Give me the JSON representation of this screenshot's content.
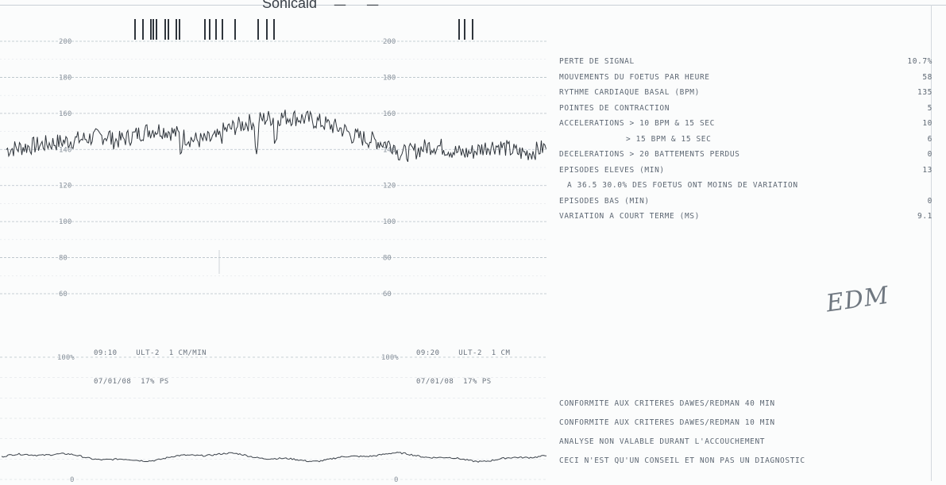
{
  "header": {
    "brand": "Sonicaid",
    "marks": "— —"
  },
  "axis": {
    "fhr_ticks": [
      "200",
      "180",
      "160",
      "140",
      "120",
      "100",
      "80",
      "60"
    ],
    "toco_top": "100%",
    "toco_bottom": "0"
  },
  "stamps": [
    {
      "line1": "09:10    ULT-2  1 CM/MIN",
      "line2": "07/01/08  17% PS"
    },
    {
      "line1": "09:20    ULT-2  1 CM",
      "line2": "07/01/08  17% PS"
    }
  ],
  "stats": [
    {
      "label": "PERTE DE SIGNAL",
      "value": "10.7%"
    },
    {
      "label": "MOUVEMENTS DU FOETUS PAR HEURE",
      "value": "58"
    },
    {
      "label": "RYTHME CARDIAQUE BASAL (BPM)",
      "value": "135"
    },
    {
      "label": "POINTES DE CONTRACTION",
      "value": "5"
    },
    {
      "label": "ACCELERATIONS > 10 BPM & 15 SEC",
      "value": "10"
    },
    {
      "label": "> 15 BPM & 15 SEC",
      "value": "6"
    },
    {
      "label": "DECELERATIONS > 20 BATTEMENTS PERDUS",
      "value": "0"
    },
    {
      "label": "EPISODES ELEVES (MIN)",
      "value": "13"
    },
    {
      "label": "A 36.5   30.0% DES FOETUS ONT MOINS DE VARIATION",
      "value": ""
    },
    {
      "label": "EPISODES BAS (MIN)",
      "value": "0"
    },
    {
      "label": "VARIATION A COURT TERME (MS)",
      "value": "9.1"
    }
  ],
  "footer": [
    "CONFORMITE AUX CRITERES DAWES/REDMAN   40 MIN",
    "CONFORMITE AUX CRITERES DAWES/REDMAN   10 MIN",
    "ANALYSE NON VALABLE DURANT L'ACCOUCHEMENT",
    "CECI N'EST QU'UN CONSEIL ET NON PAS UN DIAGNOSTIC"
  ],
  "colors": {
    "grid": "#b7c0c8",
    "trace": "#2f353c",
    "text": "#5e6874"
  }
}
